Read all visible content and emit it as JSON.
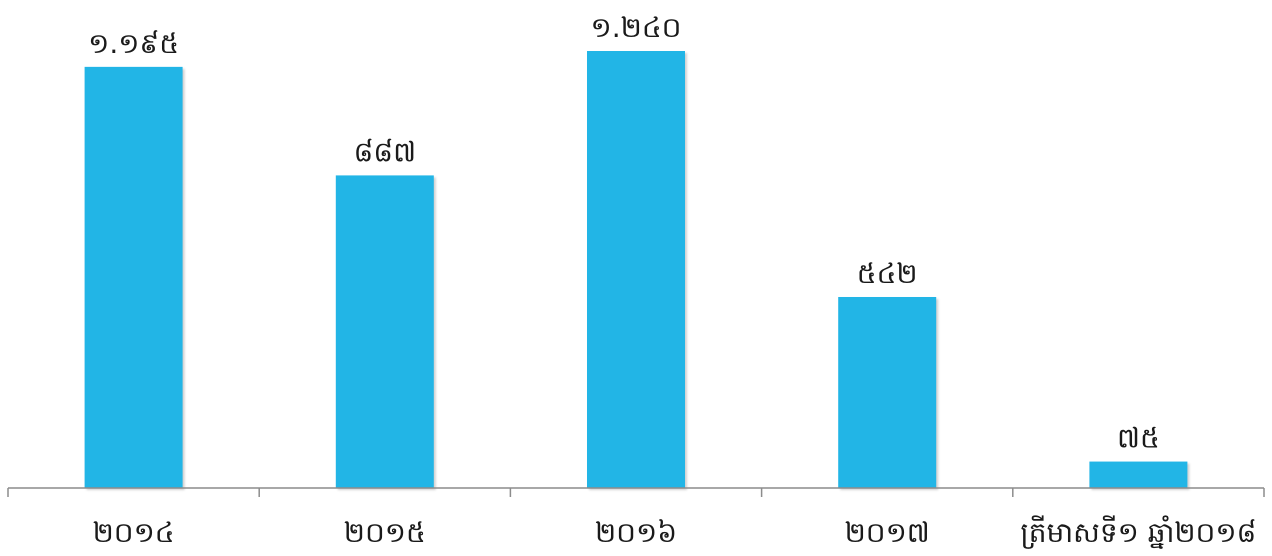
{
  "chart_data": {
    "type": "bar",
    "categories": [
      "២០១៤",
      "២០១៥",
      "២០១៦",
      "២០១៧",
      "ត្រីមាសទី១ ឆ្នាំ២០១៨"
    ],
    "values": [
      1195,
      887,
      1240,
      542,
      75
    ],
    "value_labels": [
      "១.១៩៥",
      "៨៨៧",
      "១.២៤០",
      "៥៤២",
      "៧៥"
    ],
    "title": "",
    "xlabel": "",
    "ylabel": "",
    "ylim": [
      0,
      1300
    ],
    "grid": false,
    "legend": "none",
    "bar_color": "#22b5e6"
  }
}
